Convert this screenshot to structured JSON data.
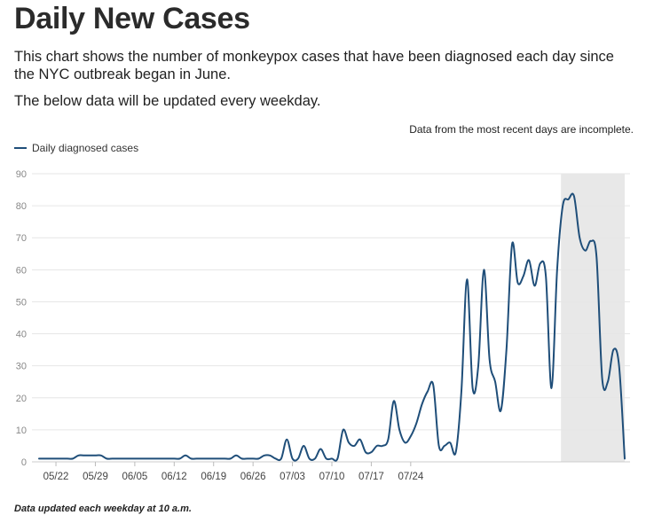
{
  "header": {
    "title": "Daily New Cases",
    "description": "This chart shows the number of monkeypox cases that have been diagnosed each day since the NYC outbreak began in June.",
    "update_note": "The below data will be updated every weekday."
  },
  "incomplete_note": "Data from the most recent days are incomplete.",
  "footer": "Data updated each weekday at 10 a.m.",
  "colors": {
    "line": "#1f4e79",
    "shade": "#e8e8e8",
    "grid": "#e6e6e6",
    "axis_text": "#888888"
  },
  "chart_data": {
    "type": "line",
    "title": "Daily New Cases",
    "series": [
      {
        "name": "Daily diagnosed cases",
        "start_date": "05/19",
        "values": [
          1,
          1,
          1,
          1,
          1,
          1,
          1,
          2,
          2,
          2,
          2,
          2,
          1,
          1,
          1,
          1,
          1,
          1,
          1,
          1,
          1,
          1,
          1,
          1,
          1,
          1,
          2,
          1,
          1,
          1,
          1,
          1,
          1,
          1,
          1,
          2,
          1,
          1,
          1,
          1,
          2,
          2,
          1,
          1,
          7,
          1,
          1,
          5,
          1,
          1,
          4,
          1,
          1,
          1,
          10,
          6,
          5,
          7,
          3,
          3,
          5,
          5,
          7,
          19,
          10,
          6,
          8,
          12,
          18,
          22,
          24,
          5,
          5,
          6,
          3,
          22,
          57,
          23,
          30,
          60,
          32,
          25,
          16,
          35,
          68,
          56,
          58,
          63,
          55,
          62,
          58,
          23,
          60,
          80,
          82,
          83,
          70,
          66,
          69,
          64,
          26,
          25,
          35,
          30,
          1
        ]
      }
    ],
    "x_tick_labels": [
      "05/22",
      "05/29",
      "06/05",
      "06/12",
      "06/19",
      "06/26",
      "07/03",
      "07/10",
      "07/17",
      "07/24"
    ],
    "x_tick_dates_index": [
      3,
      10,
      17,
      24,
      31,
      38,
      45,
      52,
      59,
      66
    ],
    "incomplete_range_index": [
      93,
      104
    ],
    "ylim": [
      0,
      90
    ],
    "y_ticks": [
      0,
      10,
      20,
      30,
      40,
      50,
      60,
      70,
      80,
      90
    ],
    "xlabel": "",
    "ylabel": "",
    "legend": "top-left",
    "grid": true
  }
}
